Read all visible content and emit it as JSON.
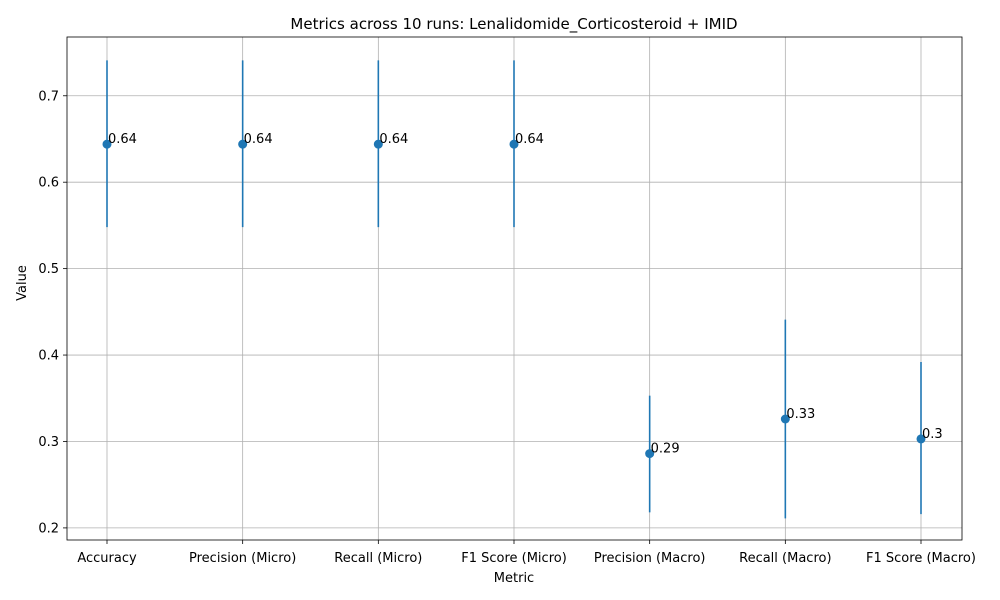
{
  "chart_data": {
    "type": "scatter",
    "title": "Metrics across 10 runs: Lenalidomide_Corticosteroid + IMID",
    "xlabel": "Metric",
    "ylabel": "Value",
    "categories": [
      "Accuracy",
      "Precision (Micro)",
      "Recall (Micro)",
      "F1 Score (Micro)",
      "Precision (Macro)",
      "Recall (Macro)",
      "F1 Score (Macro)"
    ],
    "values": [
      0.644,
      0.644,
      0.644,
      0.644,
      0.286,
      0.326,
      0.303
    ],
    "error_low": [
      0.548,
      0.548,
      0.548,
      0.548,
      0.218,
      0.211,
      0.216
    ],
    "error_high": [
      0.741,
      0.741,
      0.741,
      0.741,
      0.353,
      0.441,
      0.392
    ],
    "data_labels": [
      "0.64",
      "0.64",
      "0.64",
      "0.64",
      "0.29",
      "0.33",
      "0.3"
    ],
    "ylim": [
      0.186,
      0.768
    ],
    "yticks": [
      0.2,
      0.3,
      0.4,
      0.5,
      0.6,
      0.7
    ],
    "ytick_labels": [
      "0.2",
      "0.3",
      "0.4",
      "0.5",
      "0.6",
      "0.7"
    ],
    "grid": true,
    "color": "#1f77b4"
  }
}
